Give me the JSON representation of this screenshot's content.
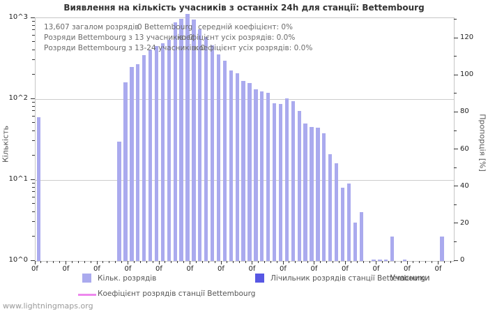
{
  "page": {
    "watermark": "www.lightningmaps.org"
  },
  "chart_data": {
    "type": "bar",
    "title": "Виявлення на кількість учасників з останніх 24h для станції: Bettembourg",
    "info_lines": [
      {
        "segments": [
          "13,607 загалом розрядів",
          "0 Bettembourg",
          "середній коефіцієнт: 0%"
        ]
      },
      {
        "segments": [
          "Розряди Bettembourg з 13 учасників: 0",
          "коефіцієнт усіх розрядів: 0.0%"
        ]
      },
      {
        "segments": [
          "Розряди Bettembourg з 13-24 учасників: 0",
          "коефіцієнт усіх розрядів: 0.0%"
        ]
      }
    ],
    "x_axis": {
      "label": "Учасники",
      "tick_label": "0f",
      "major_tick_count": 14,
      "slot_count": 68
    },
    "y_left": {
      "label": "Кількість",
      "scale": "log10",
      "tick_labels": [
        "10^0",
        "10^1",
        "10^2",
        "10^3"
      ],
      "range": [
        1,
        1000
      ]
    },
    "y_right": {
      "label": "Пропорція [%]",
      "tick_values": [
        0,
        20,
        40,
        60,
        80,
        100,
        120
      ],
      "range": [
        0,
        130
      ],
      "grid": false
    },
    "series": [
      {
        "name": "Кільк. розрядів",
        "type": "bar",
        "color": "#aaaaee",
        "points": [
          [
            0,
            60
          ],
          [
            13,
            30
          ],
          [
            14,
            160
          ],
          [
            15,
            250
          ],
          [
            16,
            270
          ],
          [
            17,
            350
          ],
          [
            18,
            410
          ],
          [
            19,
            450
          ],
          [
            20,
            490
          ],
          [
            21,
            545
          ],
          [
            22,
            890
          ],
          [
            23,
            980
          ],
          [
            24,
            1120
          ],
          [
            25,
            960
          ],
          [
            26,
            730
          ],
          [
            27,
            580
          ],
          [
            28,
            460
          ],
          [
            29,
            355
          ],
          [
            30,
            300
          ],
          [
            31,
            224
          ],
          [
            32,
            210
          ],
          [
            33,
            167
          ],
          [
            34,
            157
          ],
          [
            35,
            133
          ],
          [
            36,
            124
          ],
          [
            37,
            120
          ],
          [
            38,
            89
          ],
          [
            39,
            87
          ],
          [
            40,
            103
          ],
          [
            41,
            95
          ],
          [
            42,
            72
          ],
          [
            43,
            50
          ],
          [
            44,
            45
          ],
          [
            45,
            44
          ],
          [
            46,
            38
          ],
          [
            47,
            21
          ],
          [
            48,
            16
          ],
          [
            49,
            8
          ],
          [
            50,
            9
          ],
          [
            51,
            3
          ],
          [
            52,
            4
          ],
          [
            54,
            1
          ],
          [
            55,
            1
          ],
          [
            56,
            1
          ],
          [
            57,
            2
          ],
          [
            59,
            1
          ],
          [
            65,
            2
          ]
        ]
      },
      {
        "name": "Лічильник розрядів станції Bettembourg",
        "type": "bar",
        "color": "#5757e3",
        "points": []
      },
      {
        "name": "Коефіцієнт розрядів станції Bettembourg",
        "type": "line",
        "color": "#ee88ee",
        "points": []
      }
    ]
  }
}
